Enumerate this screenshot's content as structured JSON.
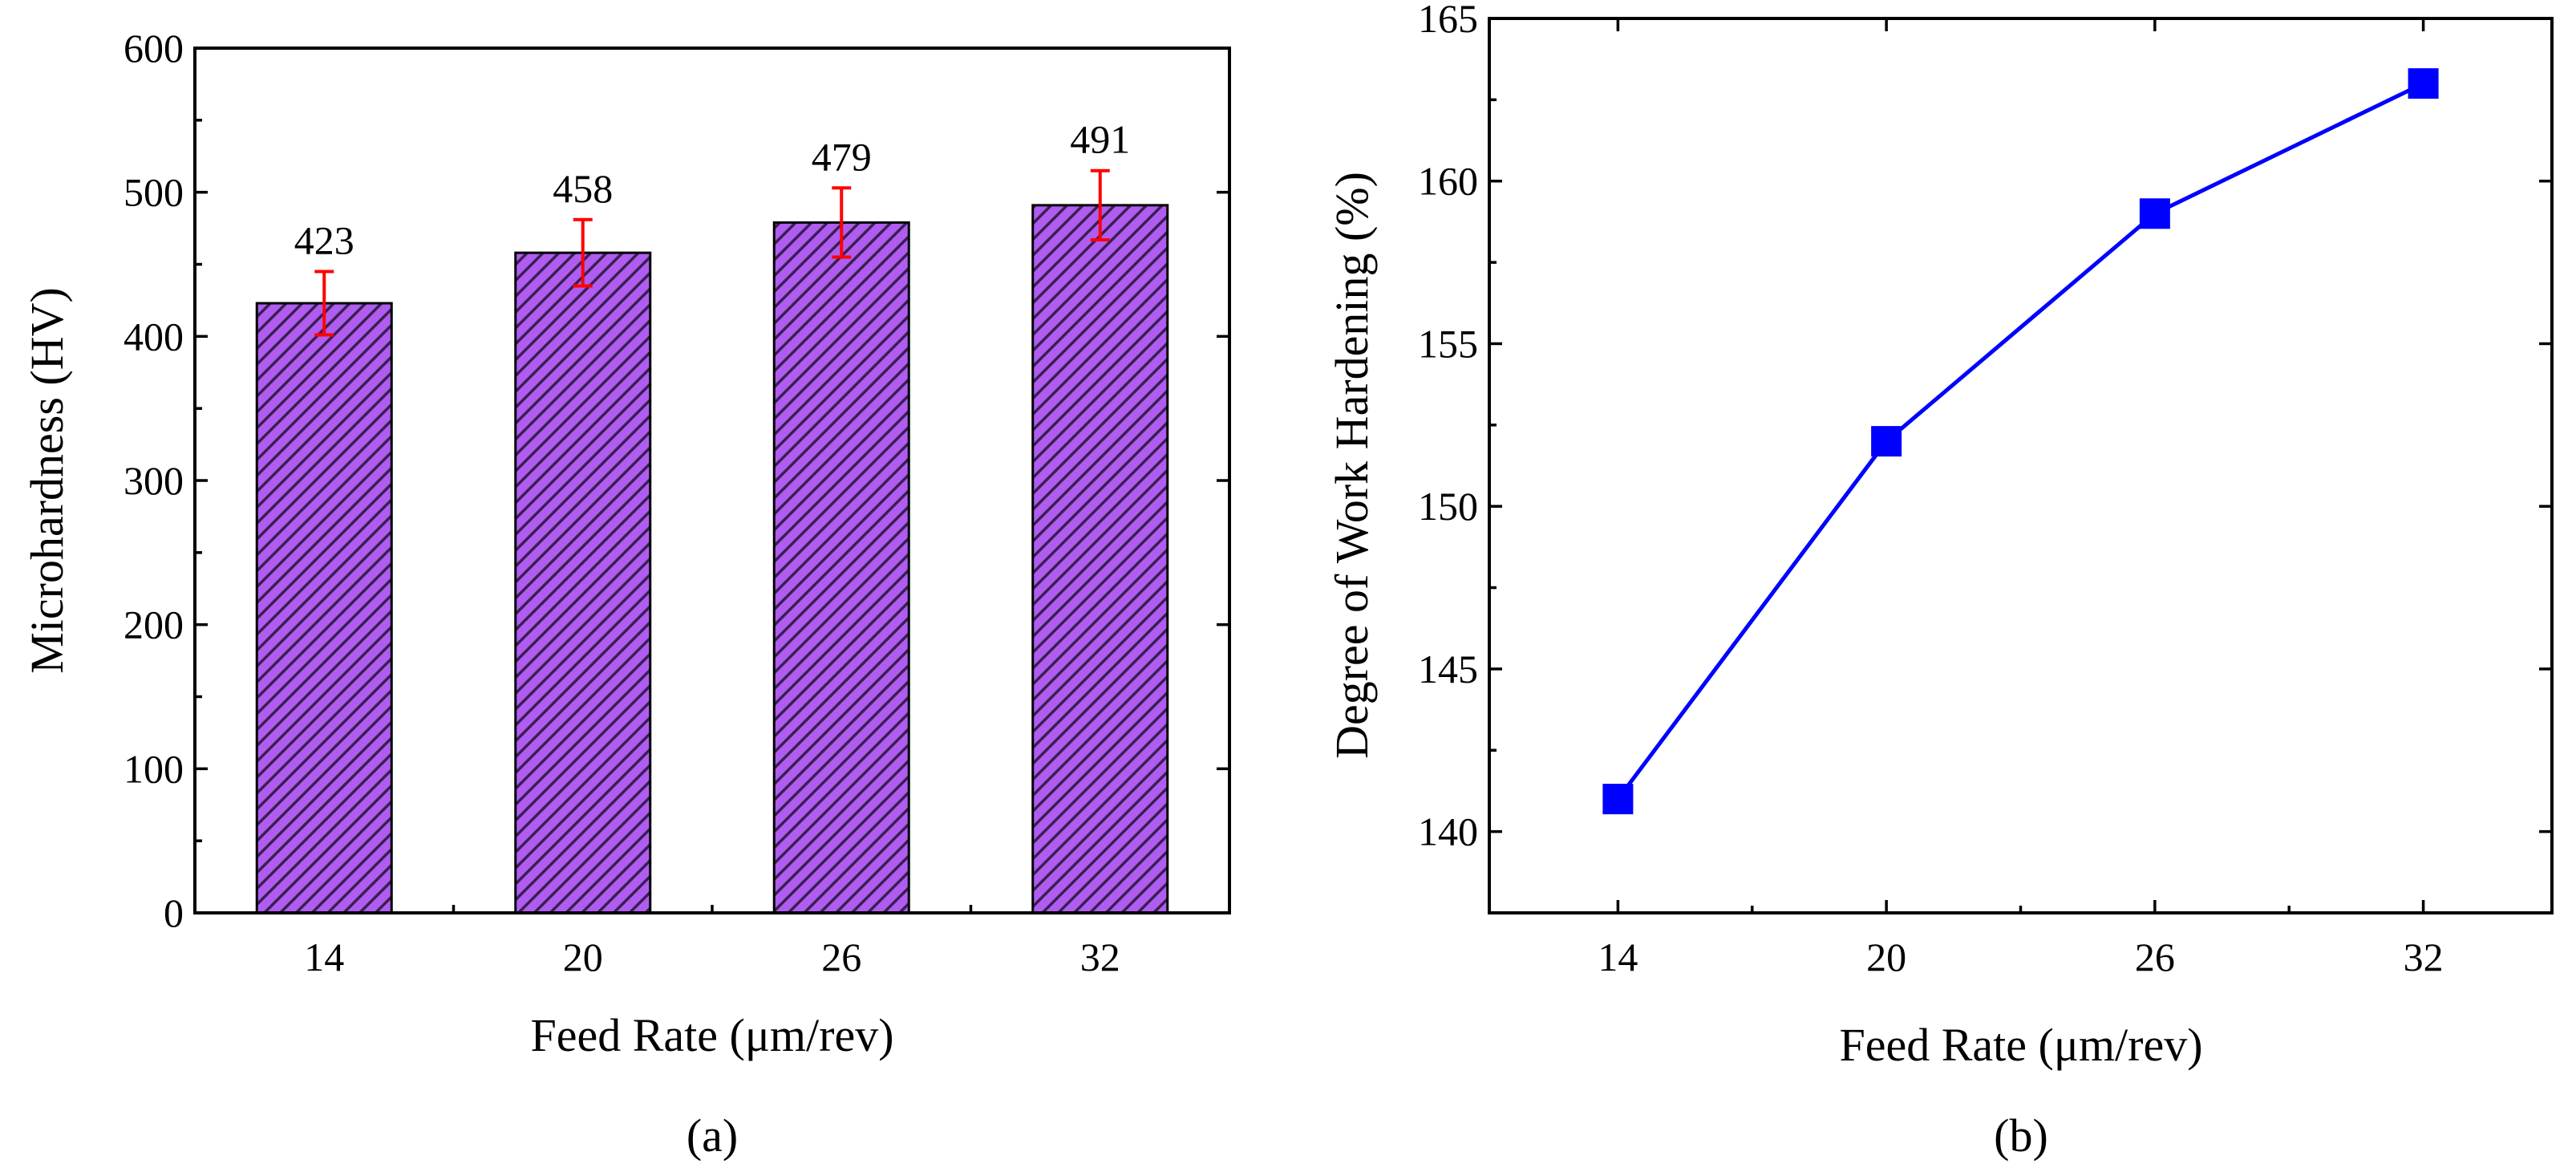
{
  "chart_data": [
    {
      "type": "bar",
      "panel_label": "(a)",
      "categories": [
        "14",
        "20",
        "26",
        "32"
      ],
      "values": [
        423,
        458,
        479,
        491
      ],
      "data_labels": [
        "423",
        "458",
        "479",
        "491"
      ],
      "error": [
        22,
        23,
        24,
        24
      ],
      "xlabel": "Feed Rate (μm/rev)",
      "ylabel": "Microhardness (HV)",
      "ylim": [
        0,
        600
      ],
      "yticks": [
        "0",
        "100",
        "200",
        "300",
        "400",
        "500",
        "600"
      ],
      "colors": {
        "bar_fill": "#b05cf0",
        "hatch": "#3a1f52",
        "error_bar": "#ff0000"
      }
    },
    {
      "type": "line",
      "panel_label": "(b)",
      "x": [
        "14",
        "20",
        "26",
        "32"
      ],
      "values": [
        141,
        152,
        159,
        163
      ],
      "xlabel": "Feed Rate (μm/rev)",
      "ylabel": "Degree of Work Hardening (%)",
      "ylim": [
        137.5,
        165
      ],
      "yticks": [
        "140",
        "145",
        "150",
        "155",
        "160",
        "165"
      ],
      "colors": {
        "line": "#0000ff",
        "marker": "#0000ff"
      },
      "marker": "square"
    }
  ]
}
